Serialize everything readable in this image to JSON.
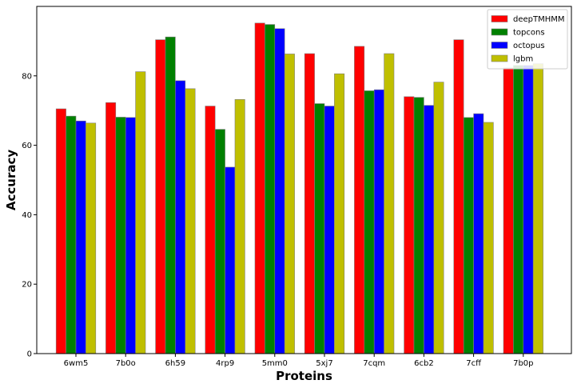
{
  "chart_data": {
    "type": "bar",
    "title": "",
    "xlabel": "Proteins",
    "ylabel": "Accuracy",
    "categories": [
      "6wm5",
      "7b0o",
      "6h59",
      "4rp9",
      "5mm0",
      "5xj7",
      "7cqm",
      "6cb2",
      "7cff",
      "7b0p"
    ],
    "series": [
      {
        "name": "deepTMHMM",
        "color": "#ff0000",
        "values": [
          70.5,
          72.3,
          90.4,
          71.3,
          95.2,
          86.4,
          88.5,
          74.0,
          90.4,
          82.3
        ]
      },
      {
        "name": "topcons",
        "color": "#008000",
        "values": [
          68.4,
          68.1,
          91.2,
          64.6,
          94.8,
          72.0,
          75.7,
          73.8,
          68.0,
          83.0
        ]
      },
      {
        "name": "octopus",
        "color": "#0000ff",
        "values": [
          67.0,
          68.0,
          78.6,
          53.7,
          93.6,
          71.3,
          76.0,
          71.5,
          69.1,
          83.0
        ]
      },
      {
        "name": "lgbm",
        "color": "#bfbf00",
        "values": [
          66.4,
          81.2,
          76.3,
          73.2,
          86.3,
          80.6,
          86.4,
          78.2,
          66.6,
          83.5
        ]
      }
    ],
    "yticks": [
      0,
      20,
      40,
      60,
      80
    ],
    "ylim": [
      0,
      100
    ],
    "grid": false,
    "legend_position": "top-right"
  }
}
